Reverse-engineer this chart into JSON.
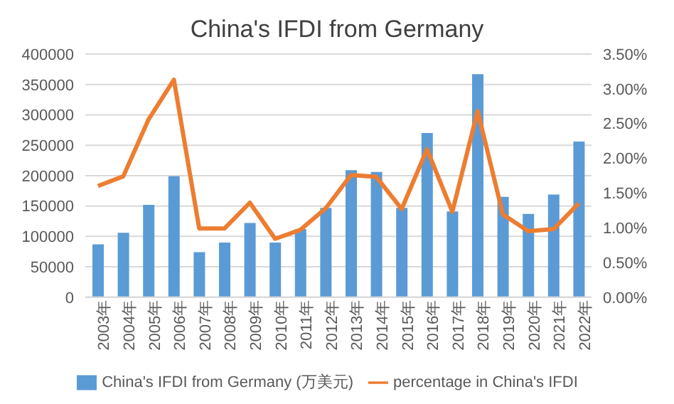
{
  "chart_data": {
    "type": "bar",
    "title": "China's IFDI from Germany",
    "categories": [
      "2003年",
      "2004年",
      "2005年",
      "2006年",
      "2007年",
      "2008年",
      "2009年",
      "2010年",
      "2011年",
      "2012年",
      "2013年",
      "2014年",
      "2015年",
      "2016年",
      "2017年",
      "2018年",
      "2019年",
      "2020年",
      "2021年",
      "2022年"
    ],
    "series": [
      {
        "name": "China's IFDI from Germany (万美元)",
        "color": "#5b9bd5",
        "values": [
          87000,
          106000,
          152000,
          199000,
          74000,
          90000,
          122000,
          90000,
          112000,
          147000,
          209000,
          206000,
          147000,
          270000,
          141000,
          367000,
          165000,
          137000,
          169000,
          256000
        ]
      },
      {
        "name": "percentage in China's IFDI",
        "color": "#ed7d31",
        "type": "line",
        "axis": "y2",
        "values": [
          1.6,
          1.74,
          2.56,
          3.13,
          0.99,
          0.99,
          1.36,
          0.84,
          0.97,
          1.28,
          1.76,
          1.73,
          1.27,
          2.13,
          1.23,
          2.68,
          1.19,
          0.95,
          0.98,
          1.35
        ]
      }
    ],
    "ylim": [
      0,
      400000
    ],
    "yticks": [
      0,
      50000,
      100000,
      150000,
      200000,
      250000,
      300000,
      350000,
      400000
    ],
    "y2lim": [
      0,
      3.5
    ],
    "y2ticks": [
      {
        "value": 0,
        "label": "0.00%"
      },
      {
        "value": 0.5,
        "label": "0.50%"
      },
      {
        "value": 1,
        "label": "1.00%"
      },
      {
        "value": 1.5,
        "label": "1.50%"
      },
      {
        "value": 2,
        "label": "2.00%"
      },
      {
        "value": 2.5,
        "label": "2.50%"
      },
      {
        "value": 3,
        "label": "3.00%"
      },
      {
        "value": 3.5,
        "label": "3.50%"
      }
    ],
    "grid": "y",
    "legend": "bottom",
    "marker": "none",
    "line_style": "solid"
  }
}
